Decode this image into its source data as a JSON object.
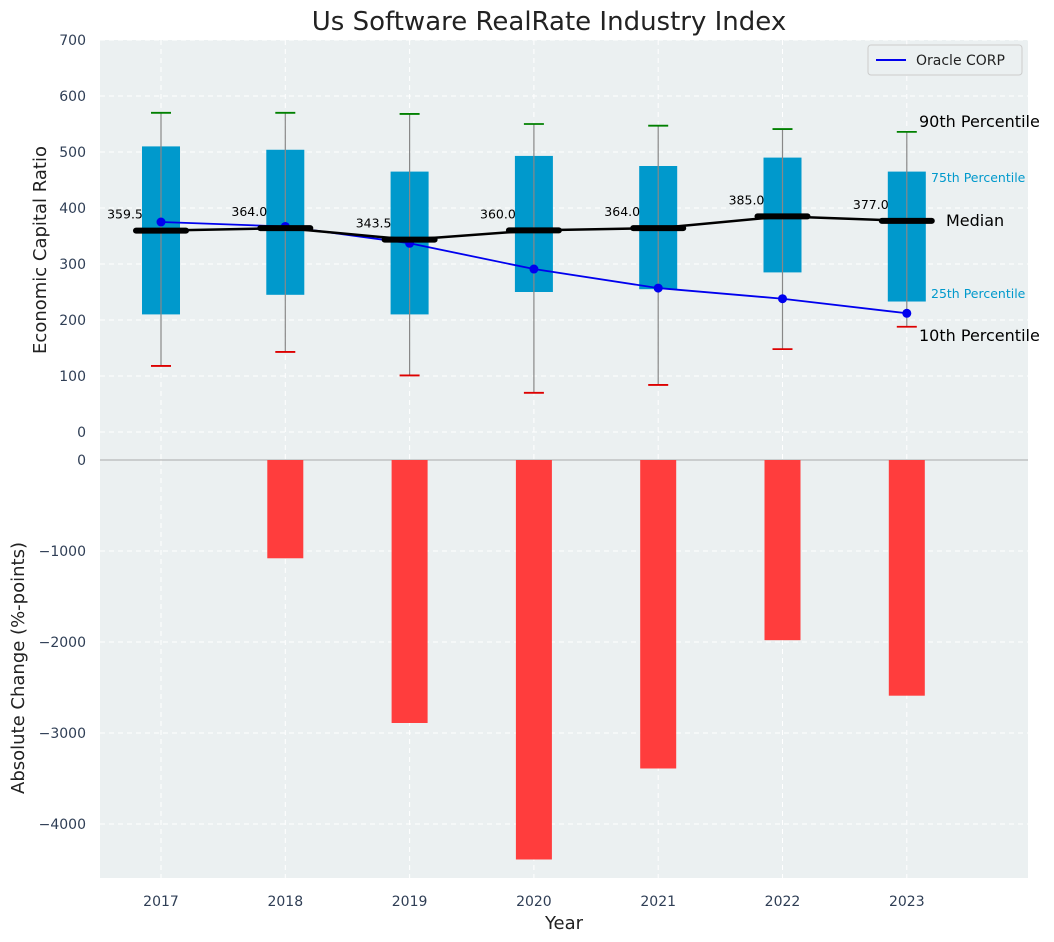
{
  "chart_data": [
    {
      "type": "box",
      "title": "Us Software RealRate Industry Index",
      "ylabel": "Economic Capital Ratio",
      "ylim": [
        0,
        700
      ],
      "yticks": [
        0,
        100,
        200,
        300,
        400,
        500,
        600,
        700
      ],
      "grid": true,
      "categories": [
        "2017",
        "2018",
        "2019",
        "2020",
        "2021",
        "2022",
        "2023"
      ],
      "percentiles": {
        "p10": [
          118,
          143,
          101,
          70,
          84,
          148,
          188
        ],
        "p25": [
          210,
          245,
          210,
          250,
          255,
          285,
          233
        ],
        "median": [
          359.5,
          364.0,
          343.5,
          360.0,
          364.0,
          385.0,
          377.0
        ],
        "p75": [
          510,
          504,
          465,
          493,
          475,
          490,
          465
        ],
        "p90": [
          570,
          570,
          568,
          550,
          547,
          541,
          536
        ]
      },
      "median_labels": [
        "359.5",
        "364.0",
        "343.5",
        "360.0",
        "364.0",
        "385.0",
        "377.0"
      ],
      "series": [
        {
          "name": "Oracle CORP",
          "values": [
            375,
            367,
            337,
            291,
            257,
            238,
            212
          ],
          "color": "#0000ee"
        }
      ],
      "annotations": {
        "p90": "90th Percentile",
        "p75": "75th Percentile",
        "median": "Median",
        "p25": "25th Percentile",
        "p10": "10th Percentile"
      },
      "legend": "top-right",
      "colors": {
        "box": "#0099cc",
        "median": "#000000",
        "p90_cap": "#008000",
        "p10_cap": "#dd0000",
        "background": "#ebf0f1"
      }
    },
    {
      "type": "bar",
      "categories": [
        "2017",
        "2018",
        "2019",
        "2020",
        "2021",
        "2022",
        "2023"
      ],
      "values": [
        0,
        -1080,
        -2890,
        -4390,
        -3390,
        -1980,
        -2590
      ],
      "xlabel": "Year",
      "ylabel": "Absolute Change (%-points)",
      "ylim": [
        -4600,
        0
      ],
      "yticks": [
        0,
        -1000,
        -2000,
        -3000,
        -4000
      ],
      "ytick_labels": [
        "0",
        "−1000",
        "−2000",
        "−3000",
        "−4000"
      ],
      "grid": true,
      "colors": {
        "bar": "#ff3d3d"
      }
    }
  ]
}
